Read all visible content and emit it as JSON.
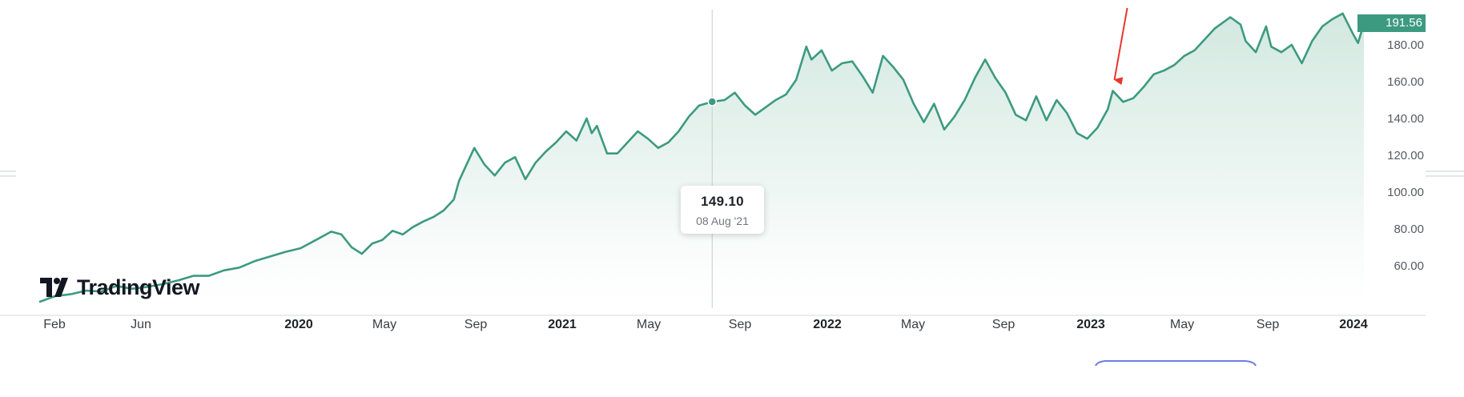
{
  "chart_data": {
    "type": "area",
    "title": "",
    "xlabel": "",
    "ylabel": "",
    "x_tick_labels": [
      {
        "label": "Feb",
        "bold": false
      },
      {
        "label": "Jun",
        "bold": false
      },
      {
        "label": "2020",
        "bold": true
      },
      {
        "label": "May",
        "bold": false
      },
      {
        "label": "Sep",
        "bold": false
      },
      {
        "label": "2021",
        "bold": true
      },
      {
        "label": "May",
        "bold": false
      },
      {
        "label": "Sep",
        "bold": false
      },
      {
        "label": "2022",
        "bold": true
      },
      {
        "label": "May",
        "bold": false
      },
      {
        "label": "Sep",
        "bold": false
      },
      {
        "label": "2023",
        "bold": true
      },
      {
        "label": "May",
        "bold": false
      },
      {
        "label": "Sep",
        "bold": false
      },
      {
        "label": "2024",
        "bold": true
      }
    ],
    "y_tick_labels": [
      "60.00",
      "80.00",
      "100.00",
      "120.00",
      "140.00",
      "160.00",
      "180.00"
    ],
    "y_ticks": [
      60,
      80,
      100,
      120,
      140,
      160,
      180
    ],
    "ylim": [
      40,
      195
    ],
    "x_range": [
      "2019-01-30",
      "2024-01-18"
    ],
    "grid": false,
    "colors": {
      "line": "#3d9a80",
      "fill_top": "#cfe7de",
      "fill_bottom": "#ffffff",
      "badge": "#3c9a80",
      "arrow": "#e8362a"
    },
    "series": [
      {
        "points": [
          [
            "2019-01-30",
            40.5
          ],
          [
            "2019-02-20",
            43.5
          ],
          [
            "2019-03-13",
            44.5
          ],
          [
            "2019-04-03",
            46.5
          ],
          [
            "2019-04-24",
            46.0
          ],
          [
            "2019-05-15",
            49.0
          ],
          [
            "2019-06-05",
            47.5
          ],
          [
            "2019-06-26",
            48.5
          ],
          [
            "2019-07-17",
            50.0
          ],
          [
            "2019-08-07",
            52.0
          ],
          [
            "2019-08-28",
            54.5
          ],
          [
            "2019-09-18",
            54.5
          ],
          [
            "2019-10-09",
            57.5
          ],
          [
            "2019-10-30",
            59.0
          ],
          [
            "2019-11-20",
            62.5
          ],
          [
            "2019-12-11",
            65.0
          ],
          [
            "2020-01-01",
            67.5
          ],
          [
            "2020-01-22",
            69.5
          ],
          [
            "2020-02-12",
            74.0
          ],
          [
            "2020-03-04",
            78.5
          ],
          [
            "2020-03-18",
            77.0
          ],
          [
            "2020-04-01",
            70.0
          ],
          [
            "2020-04-15",
            66.5
          ],
          [
            "2020-04-29",
            72.0
          ],
          [
            "2020-05-13",
            74.0
          ],
          [
            "2020-05-27",
            79.0
          ],
          [
            "2020-06-10",
            77.0
          ],
          [
            "2020-06-24",
            81.0
          ],
          [
            "2020-07-08",
            84.0
          ],
          [
            "2020-07-22",
            86.5
          ],
          [
            "2020-08-05",
            90.0
          ],
          [
            "2020-08-19",
            96.0
          ],
          [
            "2020-08-26",
            106.0
          ],
          [
            "2020-09-02",
            112.0
          ],
          [
            "2020-09-16",
            124.0
          ],
          [
            "2020-09-30",
            115.0
          ],
          [
            "2020-10-14",
            109.0
          ],
          [
            "2020-10-28",
            116.0
          ],
          [
            "2020-11-11",
            119.0
          ],
          [
            "2020-11-25",
            107.0
          ],
          [
            "2020-12-09",
            116.0
          ],
          [
            "2020-12-23",
            122.0
          ],
          [
            "2021-01-06",
            127.0
          ],
          [
            "2021-01-20",
            133.0
          ],
          [
            "2021-02-03",
            128.0
          ],
          [
            "2021-02-17",
            140.0
          ],
          [
            "2021-02-24",
            132.0
          ],
          [
            "2021-03-03",
            136.0
          ],
          [
            "2021-03-17",
            121.0
          ],
          [
            "2021-03-31",
            121.0
          ],
          [
            "2021-04-14",
            127.0
          ],
          [
            "2021-04-28",
            133.0
          ],
          [
            "2021-05-12",
            129.0
          ],
          [
            "2021-05-26",
            124.0
          ],
          [
            "2021-06-09",
            127.0
          ],
          [
            "2021-06-23",
            133.0
          ],
          [
            "2021-07-07",
            141.0
          ],
          [
            "2021-07-21",
            147.0
          ],
          [
            "2021-08-08",
            149.1
          ],
          [
            "2021-08-25",
            150.0
          ],
          [
            "2021-09-08",
            154.0
          ],
          [
            "2021-09-22",
            147.0
          ],
          [
            "2021-10-06",
            142.0
          ],
          [
            "2021-10-20",
            146.0
          ],
          [
            "2021-11-03",
            150.0
          ],
          [
            "2021-11-17",
            153.0
          ],
          [
            "2021-12-01",
            161.0
          ],
          [
            "2021-12-15",
            179.0
          ],
          [
            "2021-12-22",
            172.0
          ],
          [
            "2022-01-05",
            177.0
          ],
          [
            "2022-01-19",
            166.0
          ],
          [
            "2022-02-02",
            170.0
          ],
          [
            "2022-02-16",
            171.0
          ],
          [
            "2022-03-02",
            163.0
          ],
          [
            "2022-03-16",
            154.0
          ],
          [
            "2022-03-30",
            174.0
          ],
          [
            "2022-04-13",
            168.0
          ],
          [
            "2022-04-27",
            161.0
          ],
          [
            "2022-05-11",
            148.0
          ],
          [
            "2022-05-25",
            138.0
          ],
          [
            "2022-06-08",
            148.0
          ],
          [
            "2022-06-22",
            134.0
          ],
          [
            "2022-07-06",
            141.0
          ],
          [
            "2022-07-20",
            150.0
          ],
          [
            "2022-08-03",
            162.0
          ],
          [
            "2022-08-17",
            172.0
          ],
          [
            "2022-08-31",
            162.0
          ],
          [
            "2022-09-14",
            154.0
          ],
          [
            "2022-09-28",
            142.0
          ],
          [
            "2022-10-12",
            139.0
          ],
          [
            "2022-10-26",
            152.0
          ],
          [
            "2022-11-09",
            139.0
          ],
          [
            "2022-11-23",
            150.0
          ],
          [
            "2022-12-07",
            143.0
          ],
          [
            "2022-12-21",
            132.0
          ],
          [
            "2023-01-04",
            129.0
          ],
          [
            "2023-01-18",
            135.0
          ],
          [
            "2023-02-01",
            145.0
          ],
          [
            "2023-02-08",
            155.0
          ],
          [
            "2023-02-22",
            149.0
          ],
          [
            "2023-03-08",
            151.0
          ],
          [
            "2023-03-22",
            157.0
          ],
          [
            "2023-04-05",
            164.0
          ],
          [
            "2023-04-19",
            166.0
          ],
          [
            "2023-05-03",
            169.0
          ],
          [
            "2023-05-17",
            174.0
          ],
          [
            "2023-05-31",
            177.0
          ],
          [
            "2023-06-14",
            183.0
          ],
          [
            "2023-06-28",
            189.0
          ],
          [
            "2023-07-05",
            191.0
          ],
          [
            "2023-07-19",
            195.0
          ],
          [
            "2023-08-02",
            191.0
          ],
          [
            "2023-08-09",
            182.0
          ],
          [
            "2023-08-23",
            176.0
          ],
          [
            "2023-09-06",
            190.0
          ],
          [
            "2023-09-13",
            179.0
          ],
          [
            "2023-09-27",
            176.0
          ],
          [
            "2023-10-11",
            180.0
          ],
          [
            "2023-10-25",
            170.0
          ],
          [
            "2023-11-08",
            182.0
          ],
          [
            "2023-11-22",
            190.0
          ],
          [
            "2023-12-06",
            194.0
          ],
          [
            "2023-12-20",
            197.0
          ],
          [
            "2024-01-03",
            186.0
          ],
          [
            "2024-01-10",
            181.0
          ],
          [
            "2024-01-18",
            191.56
          ]
        ]
      }
    ],
    "crosshair": {
      "date": "2021-08-08",
      "value": 149.1,
      "value_label": "149.10",
      "date_label": "08 Aug '21"
    },
    "last_price": {
      "value": 191.56,
      "label": "191.56"
    },
    "annotations": [
      {
        "type": "arrow",
        "color": "#e8362a",
        "points_to_date": "2023-02-08"
      }
    ]
  },
  "branding": {
    "logo_text": "TradingView",
    "logo_icon": "tradingview-logo-icon"
  }
}
